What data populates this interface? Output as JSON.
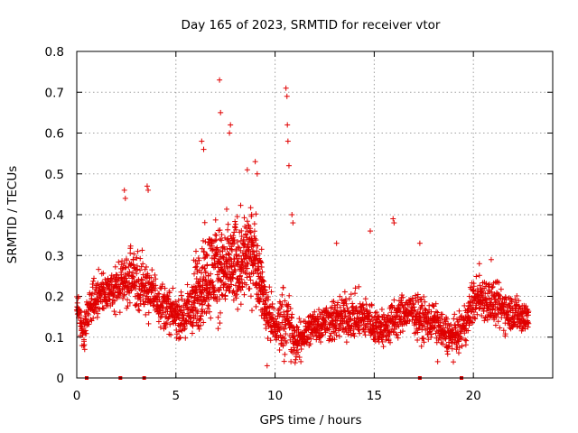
{
  "chart_data": {
    "type": "scatter",
    "title": "Day 165 of 2023, SRMTID for receiver vtor",
    "xlabel": "GPS time / hours",
    "ylabel": "SRMTID / TECUs",
    "xlim": [
      0,
      24
    ],
    "ylim": [
      0,
      0.8
    ],
    "xticks": [
      0,
      5,
      10,
      15,
      20
    ],
    "xtick_labels": [
      "0",
      "5",
      "10",
      "15",
      "20"
    ],
    "yticks": [
      0,
      0.1,
      0.2,
      0.3,
      0.4,
      0.5,
      0.6,
      0.7,
      0.8
    ],
    "ytick_labels": [
      "0",
      "0.1",
      "0.2",
      "0.3",
      "0.4",
      "0.5",
      "0.6",
      "0.7",
      "0.8"
    ],
    "grid": true,
    "series_color": "#e00000",
    "zero_markers_x": [
      0.5,
      2.2,
      3.4,
      17.3,
      19.4
    ],
    "envelope": {
      "description": "approximate center/spread of the point cloud by hour",
      "x": [
        0.0,
        0.3,
        0.6,
        1.0,
        1.5,
        2.0,
        2.5,
        3.0,
        3.5,
        4.0,
        4.5,
        5.0,
        5.5,
        6.0,
        6.5,
        7.0,
        7.5,
        8.0,
        8.5,
        9.0,
        9.5,
        10.0,
        10.5,
        10.8,
        11.0,
        11.5,
        12.0,
        12.5,
        13.0,
        13.5,
        14.0,
        14.5,
        15.0,
        15.5,
        16.0,
        16.5,
        17.0,
        17.5,
        18.0,
        18.5,
        19.0,
        19.5,
        20.0,
        20.5,
        21.0,
        21.5,
        22.0,
        22.5,
        22.8
      ],
      "center": [
        0.17,
        0.11,
        0.16,
        0.2,
        0.21,
        0.22,
        0.24,
        0.24,
        0.22,
        0.2,
        0.17,
        0.15,
        0.15,
        0.2,
        0.25,
        0.27,
        0.26,
        0.28,
        0.3,
        0.3,
        0.18,
        0.12,
        0.15,
        0.12,
        0.08,
        0.11,
        0.13,
        0.14,
        0.14,
        0.15,
        0.15,
        0.15,
        0.13,
        0.12,
        0.14,
        0.16,
        0.16,
        0.14,
        0.14,
        0.11,
        0.1,
        0.12,
        0.19,
        0.2,
        0.18,
        0.17,
        0.16,
        0.15,
        0.15
      ],
      "spread": [
        0.04,
        0.04,
        0.05,
        0.05,
        0.04,
        0.05,
        0.06,
        0.07,
        0.06,
        0.05,
        0.05,
        0.04,
        0.06,
        0.09,
        0.1,
        0.1,
        0.1,
        0.1,
        0.1,
        0.09,
        0.06,
        0.05,
        0.08,
        0.06,
        0.04,
        0.04,
        0.04,
        0.04,
        0.05,
        0.05,
        0.05,
        0.05,
        0.04,
        0.04,
        0.05,
        0.04,
        0.04,
        0.05,
        0.04,
        0.04,
        0.04,
        0.04,
        0.05,
        0.05,
        0.05,
        0.05,
        0.04,
        0.04,
        0.04
      ]
    },
    "peaks": [
      {
        "x": 7.2,
        "y": 0.73
      },
      {
        "x": 7.25,
        "y": 0.65
      },
      {
        "x": 10.55,
        "y": 0.71
      },
      {
        "x": 10.6,
        "y": 0.69
      },
      {
        "x": 10.62,
        "y": 0.62
      },
      {
        "x": 10.65,
        "y": 0.58
      },
      {
        "x": 10.7,
        "y": 0.52
      },
      {
        "x": 6.3,
        "y": 0.58
      },
      {
        "x": 6.4,
        "y": 0.56
      },
      {
        "x": 7.7,
        "y": 0.6
      },
      {
        "x": 7.75,
        "y": 0.62
      },
      {
        "x": 8.6,
        "y": 0.51
      },
      {
        "x": 9.0,
        "y": 0.53
      },
      {
        "x": 9.1,
        "y": 0.5
      },
      {
        "x": 2.4,
        "y": 0.46
      },
      {
        "x": 2.45,
        "y": 0.44
      },
      {
        "x": 3.55,
        "y": 0.47
      },
      {
        "x": 3.6,
        "y": 0.46
      },
      {
        "x": 15.95,
        "y": 0.39
      },
      {
        "x": 16.0,
        "y": 0.38
      },
      {
        "x": 14.8,
        "y": 0.36
      },
      {
        "x": 17.3,
        "y": 0.33
      },
      {
        "x": 13.1,
        "y": 0.33
      },
      {
        "x": 20.3,
        "y": 0.28
      },
      {
        "x": 20.9,
        "y": 0.29
      },
      {
        "x": 10.85,
        "y": 0.4
      },
      {
        "x": 10.9,
        "y": 0.38
      },
      {
        "x": 9.6,
        "y": 0.03
      },
      {
        "x": 10.8,
        "y": 0.04
      },
      {
        "x": 18.2,
        "y": 0.04
      },
      {
        "x": 0.4,
        "y": 0.07
      },
      {
        "x": 11.3,
        "y": 0.04
      }
    ]
  }
}
